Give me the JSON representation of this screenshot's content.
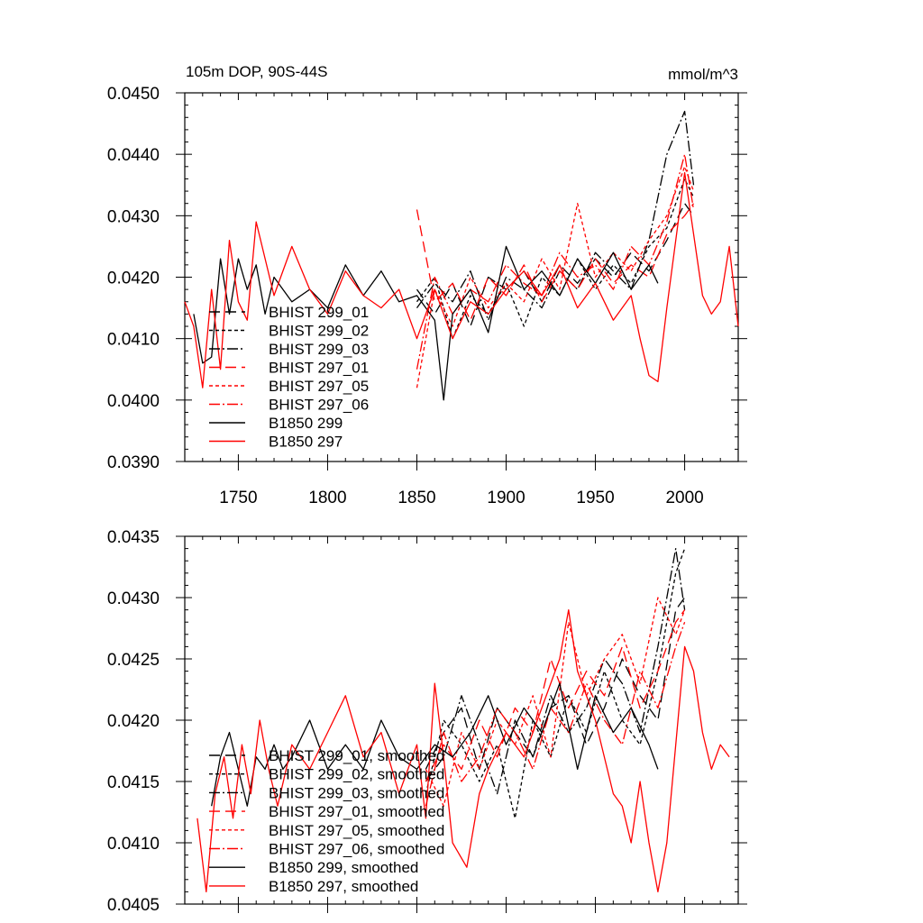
{
  "chart_data": [
    {
      "type": "line",
      "title_left": "105m DOP, 90S-44S",
      "title_right": "mmol/m^3",
      "xlim": [
        1720,
        2030
      ],
      "ylim": [
        0.039,
        0.045
      ],
      "x_ticks": [
        1750,
        1800,
        1850,
        1900,
        1950,
        2000
      ],
      "x_tick_labels": [
        "1750",
        "1800",
        "1850",
        "1900",
        "1950",
        "2000"
      ],
      "y_ticks": [
        0.039,
        0.04,
        0.041,
        0.042,
        0.043,
        0.044,
        0.045
      ],
      "y_tick_labels": [
        "0.0390",
        "0.0400",
        "0.0410",
        "0.0420",
        "0.0430",
        "0.0440",
        "0.0450"
      ],
      "legend_position": "lower-left",
      "series": [
        {
          "name": "BHIST 299_01",
          "color": "#000000",
          "dash": "12 6",
          "x": [
            1850,
            1860,
            1870,
            1880,
            1890,
            1900,
            1910,
            1920,
            1930,
            1940,
            1950,
            1960,
            1970,
            1980,
            1990,
            2000,
            2005
          ],
          "y": [
            0.0418,
            0.0414,
            0.0419,
            0.0412,
            0.042,
            0.0418,
            0.0421,
            0.0416,
            0.0422,
            0.0419,
            0.0423,
            0.042,
            0.0424,
            0.0421,
            0.0426,
            0.0432,
            0.043
          ]
        },
        {
          "name": "BHIST 299_02",
          "color": "#000000",
          "dash": "4 3",
          "x": [
            1850,
            1860,
            1870,
            1880,
            1890,
            1900,
            1910,
            1920,
            1930,
            1940,
            1950,
            1960,
            1970,
            1980,
            1990,
            2000,
            2005
          ],
          "y": [
            0.0416,
            0.042,
            0.041,
            0.0417,
            0.0414,
            0.0419,
            0.0412,
            0.042,
            0.0417,
            0.0423,
            0.0418,
            0.0422,
            0.0419,
            0.0425,
            0.0428,
            0.0436,
            0.0433
          ]
        },
        {
          "name": "BHIST 299_03",
          "color": "#000000",
          "dash": "12 3 2 3",
          "x": [
            1850,
            1860,
            1870,
            1880,
            1890,
            1900,
            1910,
            1920,
            1930,
            1940,
            1950,
            1960,
            1970,
            1980,
            1990,
            2000,
            2005
          ],
          "y": [
            0.0415,
            0.0419,
            0.0416,
            0.0421,
            0.0413,
            0.042,
            0.0418,
            0.0415,
            0.0421,
            0.0418,
            0.0424,
            0.0421,
            0.0418,
            0.0426,
            0.044,
            0.0447,
            0.0435
          ]
        },
        {
          "name": "BHIST 297_01",
          "color": "#ff0000",
          "dash": "12 6",
          "x": [
            1850,
            1860,
            1870,
            1880,
            1890,
            1900,
            1910,
            1920,
            1930,
            1940,
            1950,
            1960,
            1970,
            1980,
            1990,
            2000,
            2005
          ],
          "y": [
            0.0431,
            0.0416,
            0.0419,
            0.0413,
            0.042,
            0.0417,
            0.0422,
            0.0416,
            0.0421,
            0.0418,
            0.0423,
            0.0419,
            0.0422,
            0.042,
            0.0427,
            0.043,
            0.0432
          ]
        },
        {
          "name": "BHIST 297_05",
          "color": "#ff0000",
          "dash": "4 3",
          "x": [
            1850,
            1860,
            1870,
            1880,
            1890,
            1900,
            1910,
            1920,
            1930,
            1940,
            1950,
            1960,
            1970,
            1980,
            1990,
            2000,
            2005
          ],
          "y": [
            0.0402,
            0.0418,
            0.0412,
            0.042,
            0.0415,
            0.0419,
            0.0416,
            0.0423,
            0.0418,
            0.0432,
            0.042,
            0.0424,
            0.0421,
            0.0426,
            0.043,
            0.0438,
            0.0434
          ]
        },
        {
          "name": "BHIST 297_06",
          "color": "#ff0000",
          "dash": "12 3 2 3",
          "x": [
            1850,
            1860,
            1870,
            1880,
            1890,
            1900,
            1910,
            1920,
            1930,
            1940,
            1950,
            1960,
            1970,
            1980,
            1990,
            2000,
            2005
          ],
          "y": [
            0.0405,
            0.042,
            0.0414,
            0.0418,
            0.0416,
            0.0422,
            0.0419,
            0.0417,
            0.0424,
            0.042,
            0.0422,
            0.0418,
            0.0425,
            0.0422,
            0.0429,
            0.044,
            0.0431
          ]
        },
        {
          "name": "B1850 299",
          "color": "#000000",
          "dash": "",
          "x": [
            1725,
            1730,
            1735,
            1740,
            1745,
            1750,
            1755,
            1760,
            1765,
            1770,
            1780,
            1790,
            1800,
            1810,
            1820,
            1830,
            1840,
            1850,
            1860,
            1865,
            1870,
            1880,
            1890,
            1900,
            1910,
            1920,
            1930,
            1940,
            1950,
            1960,
            1970,
            1980,
            1985
          ],
          "y": [
            0.0414,
            0.0406,
            0.0407,
            0.0423,
            0.0414,
            0.0423,
            0.0418,
            0.0422,
            0.0414,
            0.042,
            0.0416,
            0.0418,
            0.0415,
            0.0422,
            0.0417,
            0.0421,
            0.0416,
            0.0417,
            0.0413,
            0.04,
            0.0414,
            0.0418,
            0.0411,
            0.0425,
            0.0418,
            0.0421,
            0.0417,
            0.0423,
            0.0419,
            0.0424,
            0.0418,
            0.0422,
            0.0419
          ]
        },
        {
          "name": "B1850 297",
          "color": "#ff0000",
          "dash": "",
          "x": [
            1720,
            1725,
            1730,
            1735,
            1740,
            1745,
            1750,
            1755,
            1760,
            1770,
            1780,
            1790,
            1800,
            1810,
            1820,
            1830,
            1840,
            1850,
            1860,
            1870,
            1880,
            1890,
            1900,
            1910,
            1920,
            1930,
            1940,
            1950,
            1960,
            1970,
            1975,
            1980,
            1985,
            1990,
            2000,
            2010,
            2015,
            2020,
            2025,
            2030
          ],
          "y": [
            0.0416,
            0.0412,
            0.0402,
            0.0418,
            0.0405,
            0.0426,
            0.0416,
            0.0413,
            0.0429,
            0.0417,
            0.0425,
            0.0418,
            0.0414,
            0.0421,
            0.0417,
            0.0415,
            0.0418,
            0.041,
            0.0418,
            0.041,
            0.0416,
            0.0414,
            0.0418,
            0.0421,
            0.0417,
            0.0422,
            0.0415,
            0.0419,
            0.0413,
            0.0417,
            0.041,
            0.0404,
            0.0403,
            0.0415,
            0.0437,
            0.0417,
            0.0414,
            0.0416,
            0.0425,
            0.0412
          ]
        }
      ]
    },
    {
      "type": "line",
      "xlim": [
        1720,
        2030
      ],
      "ylim": [
        0.0405,
        0.0435
      ],
      "y_ticks": [
        0.0405,
        0.041,
        0.0415,
        0.042,
        0.0425,
        0.043,
        0.0435
      ],
      "y_tick_labels": [
        "0.0405",
        "0.0410",
        "0.0415",
        "0.0420",
        "0.0425",
        "0.0430",
        "0.0435"
      ],
      "legend_position": "lower-left",
      "series": [
        {
          "name": "BHIST 299_01, smoothed",
          "color": "#000000",
          "dash": "12 6",
          "x": [
            1855,
            1865,
            1875,
            1885,
            1895,
            1905,
            1915,
            1925,
            1935,
            1945,
            1955,
            1965,
            1975,
            1985,
            1995,
            2000
          ],
          "y": [
            0.0416,
            0.0419,
            0.0421,
            0.0416,
            0.0421,
            0.0419,
            0.0417,
            0.0421,
            0.0422,
            0.0418,
            0.0421,
            0.0425,
            0.0422,
            0.042,
            0.0429,
            0.043
          ]
        },
        {
          "name": "BHIST 299_02, smoothed",
          "color": "#000000",
          "dash": "4 3",
          "x": [
            1855,
            1865,
            1875,
            1885,
            1895,
            1905,
            1915,
            1925,
            1935,
            1945,
            1955,
            1965,
            1975,
            1985,
            1995,
            2000
          ],
          "y": [
            0.0414,
            0.042,
            0.0418,
            0.0415,
            0.0418,
            0.0412,
            0.042,
            0.0417,
            0.0422,
            0.0419,
            0.0424,
            0.042,
            0.0418,
            0.0424,
            0.0432,
            0.0434
          ]
        },
        {
          "name": "BHIST 299_03, smoothed",
          "color": "#000000",
          "dash": "12 3 2 3",
          "x": [
            1855,
            1865,
            1875,
            1885,
            1895,
            1905,
            1915,
            1925,
            1935,
            1945,
            1955,
            1965,
            1975,
            1985,
            1995,
            2000
          ],
          "y": [
            0.0415,
            0.0417,
            0.0422,
            0.0418,
            0.0414,
            0.042,
            0.0417,
            0.0422,
            0.0419,
            0.0421,
            0.0425,
            0.0423,
            0.0419,
            0.0426,
            0.0434,
            0.0429
          ]
        },
        {
          "name": "BHIST 297_01, smoothed",
          "color": "#ff0000",
          "dash": "12 6",
          "x": [
            1855,
            1865,
            1875,
            1885,
            1895,
            1905,
            1915,
            1925,
            1935,
            1945,
            1955,
            1965,
            1975,
            1985,
            1995,
            2000
          ],
          "y": [
            0.0415,
            0.0418,
            0.0416,
            0.042,
            0.0417,
            0.0421,
            0.0419,
            0.0425,
            0.0421,
            0.0424,
            0.0422,
            0.0426,
            0.0421,
            0.0424,
            0.0428,
            0.0429
          ]
        },
        {
          "name": "BHIST 297_05, smoothed",
          "color": "#ff0000",
          "dash": "4 3",
          "x": [
            1855,
            1865,
            1875,
            1885,
            1895,
            1905,
            1915,
            1925,
            1935,
            1945,
            1955,
            1965,
            1975,
            1985,
            1995,
            2000
          ],
          "y": [
            0.0416,
            0.0413,
            0.0419,
            0.0416,
            0.042,
            0.0418,
            0.0422,
            0.0417,
            0.0428,
            0.0422,
            0.0425,
            0.0427,
            0.0423,
            0.043,
            0.0427,
            0.0429
          ]
        },
        {
          "name": "BHIST 297_06, smoothed",
          "color": "#ff0000",
          "dash": "12 3 2 3",
          "x": [
            1855,
            1865,
            1875,
            1885,
            1895,
            1905,
            1915,
            1925,
            1935,
            1945,
            1955,
            1965,
            1975,
            1985,
            1995,
            2000
          ],
          "y": [
            0.0413,
            0.0419,
            0.0415,
            0.0417,
            0.0421,
            0.0419,
            0.0416,
            0.0421,
            0.0419,
            0.0423,
            0.042,
            0.0418,
            0.0424,
            0.0421,
            0.0426,
            0.0428
          ]
        },
        {
          "name": "B1850 299, smoothed",
          "color": "#000000",
          "dash": "",
          "x": [
            1735,
            1740,
            1745,
            1750,
            1755,
            1760,
            1765,
            1770,
            1775,
            1780,
            1790,
            1800,
            1810,
            1820,
            1830,
            1840,
            1850,
            1860,
            1870,
            1880,
            1890,
            1900,
            1910,
            1920,
            1930,
            1940,
            1950,
            1960,
            1970,
            1980,
            1985
          ],
          "y": [
            0.0413,
            0.0417,
            0.0419,
            0.0416,
            0.0413,
            0.0417,
            0.0416,
            0.0418,
            0.0416,
            0.0417,
            0.042,
            0.0416,
            0.0418,
            0.0416,
            0.042,
            0.0417,
            0.0416,
            0.0418,
            0.0417,
            0.0419,
            0.0422,
            0.0418,
            0.0421,
            0.0419,
            0.0423,
            0.0416,
            0.0422,
            0.0419,
            0.0421,
            0.0418,
            0.0416
          ]
        },
        {
          "name": "B1850 297, smoothed",
          "color": "#ff0000",
          "dash": "",
          "x": [
            1727,
            1732,
            1737,
            1742,
            1747,
            1752,
            1757,
            1762,
            1767,
            1772,
            1780,
            1790,
            1800,
            1810,
            1820,
            1830,
            1840,
            1850,
            1855,
            1860,
            1865,
            1870,
            1878,
            1885,
            1890,
            1900,
            1910,
            1920,
            1930,
            1935,
            1940,
            1950,
            1960,
            1965,
            1970,
            1975,
            1980,
            1985,
            1990,
            1995,
            2000,
            2005,
            2010,
            2015,
            2020,
            2025
          ],
          "y": [
            0.0412,
            0.0406,
            0.0414,
            0.0417,
            0.0412,
            0.0418,
            0.0414,
            0.042,
            0.0416,
            0.0413,
            0.0418,
            0.0416,
            0.0419,
            0.0422,
            0.0417,
            0.0419,
            0.0414,
            0.0418,
            0.0412,
            0.0423,
            0.0417,
            0.041,
            0.0408,
            0.0414,
            0.0416,
            0.0419,
            0.0417,
            0.0421,
            0.0425,
            0.0429,
            0.0424,
            0.042,
            0.0414,
            0.0413,
            0.041,
            0.0415,
            0.041,
            0.0406,
            0.041,
            0.0418,
            0.0426,
            0.0424,
            0.0419,
            0.0416,
            0.0418,
            0.0417
          ]
        }
      ]
    }
  ]
}
